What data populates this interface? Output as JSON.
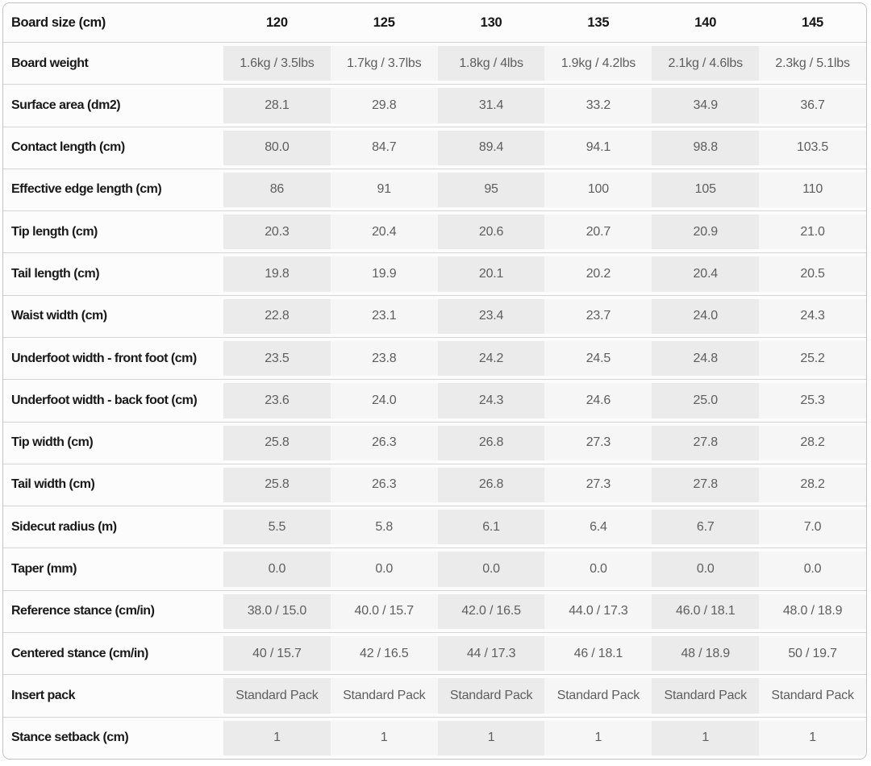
{
  "table": {
    "header": {
      "label": "Board size (cm)",
      "sizes": [
        "120",
        "125",
        "130",
        "135",
        "140",
        "145"
      ]
    },
    "rows": [
      {
        "label": "Board weight",
        "values": [
          "1.6kg / 3.5lbs",
          "1.7kg / 3.7lbs",
          "1.8kg / 4lbs",
          "1.9kg / 4.2lbs",
          "2.1kg / 4.6lbs",
          "2.3kg / 5.1lbs"
        ]
      },
      {
        "label": "Surface area (dm2)",
        "values": [
          "28.1",
          "29.8",
          "31.4",
          "33.2",
          "34.9",
          "36.7"
        ]
      },
      {
        "label": "Contact length (cm)",
        "values": [
          "80.0",
          "84.7",
          "89.4",
          "94.1",
          "98.8",
          "103.5"
        ]
      },
      {
        "label": "Effective edge length (cm)",
        "values": [
          "86",
          "91",
          "95",
          "100",
          "105",
          "110"
        ]
      },
      {
        "label": "Tip length (cm)",
        "values": [
          "20.3",
          "20.4",
          "20.6",
          "20.7",
          "20.9",
          "21.0"
        ]
      },
      {
        "label": "Tail length (cm)",
        "values": [
          "19.8",
          "19.9",
          "20.1",
          "20.2",
          "20.4",
          "20.5"
        ]
      },
      {
        "label": "Waist width (cm)",
        "values": [
          "22.8",
          "23.1",
          "23.4",
          "23.7",
          "24.0",
          "24.3"
        ]
      },
      {
        "label": "Underfoot width - front foot (cm)",
        "values": [
          "23.5",
          "23.8",
          "24.2",
          "24.5",
          "24.8",
          "25.2"
        ]
      },
      {
        "label": "Underfoot width - back foot (cm)",
        "values": [
          "23.6",
          "24.0",
          "24.3",
          "24.6",
          "25.0",
          "25.3"
        ]
      },
      {
        "label": "Tip width (cm)",
        "values": [
          "25.8",
          "26.3",
          "26.8",
          "27.3",
          "27.8",
          "28.2"
        ]
      },
      {
        "label": "Tail width (cm)",
        "values": [
          "25.8",
          "26.3",
          "26.8",
          "27.3",
          "27.8",
          "28.2"
        ]
      },
      {
        "label": "Sidecut radius (m)",
        "values": [
          "5.5",
          "5.8",
          "6.1",
          "6.4",
          "6.7",
          "7.0"
        ]
      },
      {
        "label": "Taper (mm)",
        "values": [
          "0.0",
          "0.0",
          "0.0",
          "0.0",
          "0.0",
          "0.0"
        ]
      },
      {
        "label": "Reference stance (cm/in)",
        "values": [
          "38.0 / 15.0",
          "40.0 / 15.7",
          "42.0 / 16.5",
          "44.0 / 17.3",
          "46.0 / 18.1",
          "48.0 / 18.9"
        ]
      },
      {
        "label": "Centered stance (cm/in)",
        "values": [
          "40 / 15.7",
          "42 / 16.5",
          "44 / 17.3",
          "46 / 18.1",
          "48 / 18.9",
          "50 / 19.7"
        ]
      },
      {
        "label": "Insert pack",
        "values": [
          "Standard Pack",
          "Standard Pack",
          "Standard Pack",
          "Standard Pack",
          "Standard Pack",
          "Standard Pack"
        ]
      },
      {
        "label": "Stance setback (cm)",
        "values": [
          "1",
          "1",
          "1",
          "1",
          "1",
          "1"
        ]
      }
    ]
  },
  "colors": {
    "shaded_column": "#ebebeb",
    "light_column": "#f6f6f6",
    "row_divider": "#d5d5d5",
    "table_border": "#c3c3c3",
    "label_text": "#191919",
    "value_text": "#5e5e5e"
  }
}
